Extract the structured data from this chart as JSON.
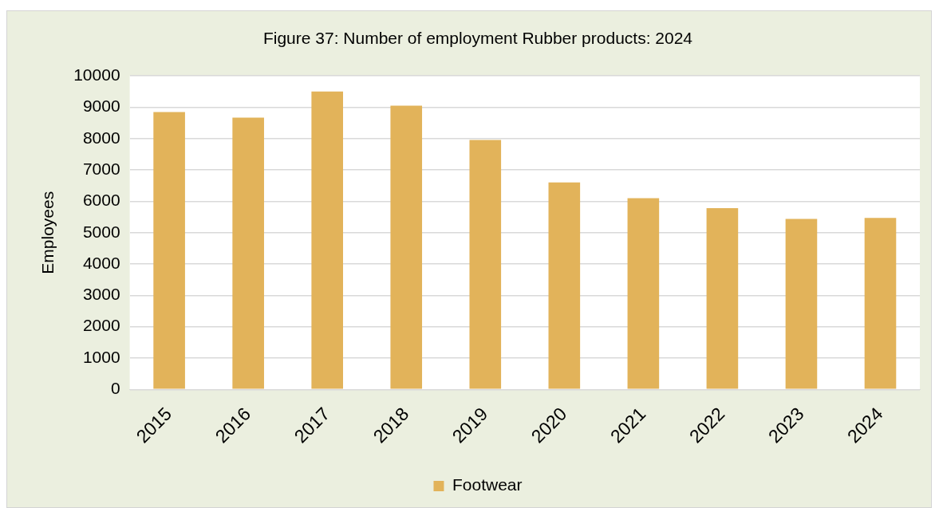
{
  "chart_data": {
    "type": "bar",
    "title": "Figure 37: Number of employment Rubber products: 2024",
    "ylabel": "Employees",
    "categories": [
      "2015",
      "2016",
      "2017",
      "2018",
      "2019",
      "2020",
      "2021",
      "2022",
      "2023",
      "2024"
    ],
    "series": [
      {
        "name": "Footwear",
        "color": "#e2b35a",
        "values": [
          8850,
          8670,
          9500,
          9050,
          7960,
          6600,
          6100,
          5780,
          5440,
          5470
        ]
      }
    ],
    "ylim": [
      0,
      10000
    ],
    "yticks": [
      0,
      1000,
      2000,
      3000,
      4000,
      5000,
      6000,
      7000,
      8000,
      9000,
      10000
    ],
    "grid": "y",
    "legend": "bottom"
  }
}
